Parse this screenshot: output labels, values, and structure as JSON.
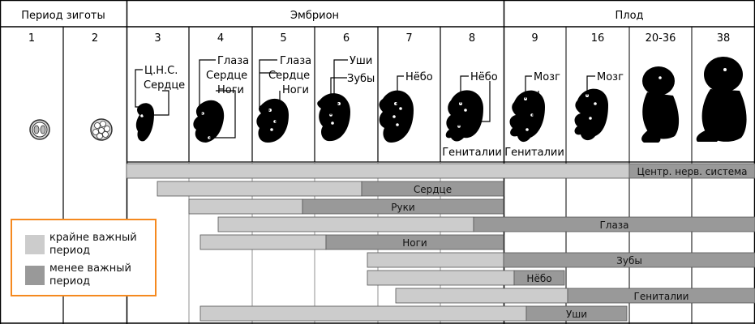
{
  "headers": {
    "zygote": "Период зиготы",
    "embryo": "Эмбрион",
    "fetus": "Плод"
  },
  "weeks": [
    "1",
    "2",
    "3",
    "4",
    "5",
    "6",
    "7",
    "8",
    "9",
    "16",
    "20-36",
    "38"
  ],
  "stage_labels": {
    "w3": [
      "Ц.Н.С.",
      "Сердце"
    ],
    "w4": [
      "Глаза",
      "Сердце",
      "Ноги"
    ],
    "w5": [
      "Глаза",
      "Сердце",
      "Ноги"
    ],
    "w6": [
      "Уши",
      "Зубы"
    ],
    "w7": [
      "Нёбо"
    ],
    "w8": [
      "Нёбо",
      "Гениталии"
    ],
    "w9": [
      "Мозг",
      "Гениталии"
    ],
    "w16": [
      "Мозг"
    ]
  },
  "bars": [
    {
      "name": "Центр. нерв. система",
      "critical": [
        "3",
        "38"
      ],
      "less": [
        "20-36",
        "38"
      ]
    },
    {
      "name": "Сердце",
      "critical": [
        "3",
        "6"
      ],
      "less": [
        "6",
        "8"
      ]
    },
    {
      "name": "Руки",
      "critical": [
        "4",
        "5"
      ],
      "less": [
        "5",
        "8"
      ]
    },
    {
      "name": "Глаза",
      "critical": [
        "4",
        "8"
      ],
      "less": [
        "8",
        "38"
      ]
    },
    {
      "name": "Ноги",
      "critical": [
        "4",
        "5"
      ],
      "less": [
        "5",
        "8"
      ]
    },
    {
      "name": "Зубы",
      "critical": [
        "7",
        "8"
      ],
      "less": [
        "9",
        "38"
      ]
    },
    {
      "name": "Нёбо",
      "critical": [
        "7",
        "9"
      ],
      "less": [
        "9",
        "9"
      ]
    },
    {
      "name": "Гениталии",
      "critical": [
        "7",
        "9"
      ],
      "less": [
        "9",
        "38"
      ]
    },
    {
      "name": "Уши",
      "critical": [
        "4",
        "9"
      ],
      "less": [
        "9",
        "16"
      ]
    }
  ],
  "legend": {
    "critical": "крайне важный период",
    "less": "менее важный период"
  },
  "colors": {
    "critical": "#cccccc",
    "less": "#999999",
    "legend_border": "#f5891f",
    "embryo": "#000000"
  }
}
